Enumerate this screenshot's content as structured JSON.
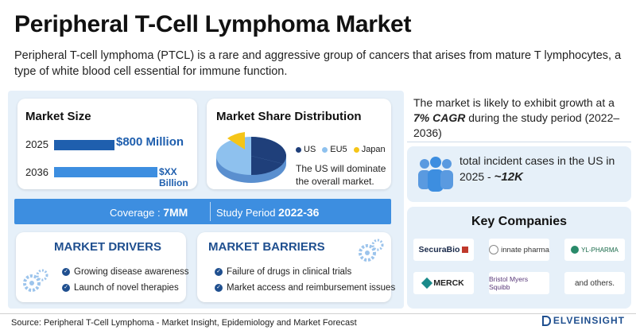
{
  "header": {
    "title": "Peripheral T-Cell Lymphoma Market",
    "subtitle": "Peripheral T-cell lymphoma (PTCL) is a rare and aggressive group of cancers that arises from mature T lymphocytes, a type of white blood cell essential for immune function."
  },
  "market_size": {
    "title": "Market Size",
    "rows": [
      {
        "year": "2025",
        "value": "$800 Million"
      },
      {
        "year": "2036",
        "value": "$XX Billion"
      }
    ]
  },
  "market_share": {
    "title": "Market Share Distribution",
    "legend": [
      {
        "label": "US",
        "color": "#1f3f7a"
      },
      {
        "label": "EU5",
        "color": "#8ec1ee"
      },
      {
        "label": "Japan",
        "color": "#f5c518"
      }
    ],
    "note": "The US will dominate the overall market."
  },
  "coverage": {
    "coverage_label": "Coverage : ",
    "coverage_value": "7MM",
    "study_label": "Study Period ",
    "study_value": "2022-36"
  },
  "drivers": {
    "title": "MARKET DRIVERS",
    "items": [
      "Growing disease awareness",
      "Launch of novel therapies"
    ]
  },
  "barriers": {
    "title": "MARKET BARRIERS",
    "items": [
      "Failure of drugs in clinical trials",
      "Market access and reimbursement issues"
    ]
  },
  "growth": {
    "text_before": "The market is likely to exhibit growth at a ",
    "cagr": "7% CAGR",
    "text_after": " during the study period (2022–2036)"
  },
  "cases": {
    "text": "total incident cases in the US in 2025 - ",
    "value": "~12K"
  },
  "companies": {
    "title": "Key Companies",
    "logos": [
      "SecuraBio",
      "innate pharma",
      "YL-PHARMA",
      "MERCK",
      "Bristol Myers Squibb",
      "and others."
    ]
  },
  "footer": {
    "source": "Source: Peripheral T-Cell Lymphoma - Market Insight, Epidemiology and Market Forecast",
    "brand": "ELVEINSIGHT"
  },
  "colors": {
    "accent_blue": "#1f5fae",
    "band_blue": "#3d8ee0",
    "panel_bg": "#e6f0f9"
  }
}
